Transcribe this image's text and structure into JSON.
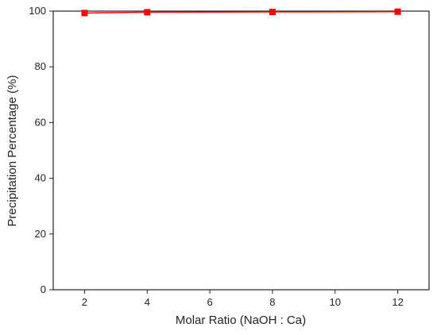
{
  "chart_data": {
    "type": "line",
    "x_label": "Molar Ratio (NaOH : Ca)",
    "y_label": "Precipitation Percentage (%)",
    "series": [
      {
        "color": "#ff0000",
        "x": [
          2,
          4,
          8,
          12
        ],
        "values": [
          99.3,
          99.6,
          99.7,
          99.8
        ]
      }
    ],
    "xlim": [
      1,
      13
    ],
    "xticks": [
      2,
      4,
      6,
      8,
      10,
      12
    ],
    "ylim": [
      0,
      100
    ],
    "yticks": [
      0,
      20,
      40,
      60,
      80,
      100
    ],
    "grid": false
  }
}
